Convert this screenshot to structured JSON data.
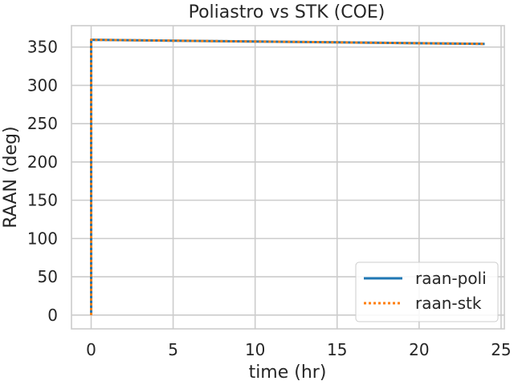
{
  "chart_data": {
    "type": "line",
    "title": "Poliastro vs STK (COE)",
    "xlabel": "time (hr)",
    "ylabel": "RAAN (deg)",
    "xlim": [
      -1.2,
      25.2
    ],
    "ylim": [
      -18,
      378
    ],
    "xticks": [
      0,
      5,
      10,
      15,
      20,
      25
    ],
    "yticks": [
      0,
      50,
      100,
      150,
      200,
      250,
      300,
      350
    ],
    "grid": true,
    "legend_position": "lower-right",
    "series": [
      {
        "name": "raan-poli",
        "color": "#1f77b4",
        "style": "solid",
        "x": [
          0,
          0,
          5,
          10,
          15,
          20,
          24
        ],
        "y": [
          0,
          359.5,
          358.4,
          357.3,
          356.2,
          355.1,
          354.2
        ]
      },
      {
        "name": "raan-stk",
        "color": "#ff7f0e",
        "style": "dotted",
        "x": [
          0,
          0,
          5,
          10,
          15,
          20,
          24
        ],
        "y": [
          0,
          359.5,
          358.4,
          357.3,
          356.2,
          355.1,
          354.2
        ]
      }
    ]
  }
}
